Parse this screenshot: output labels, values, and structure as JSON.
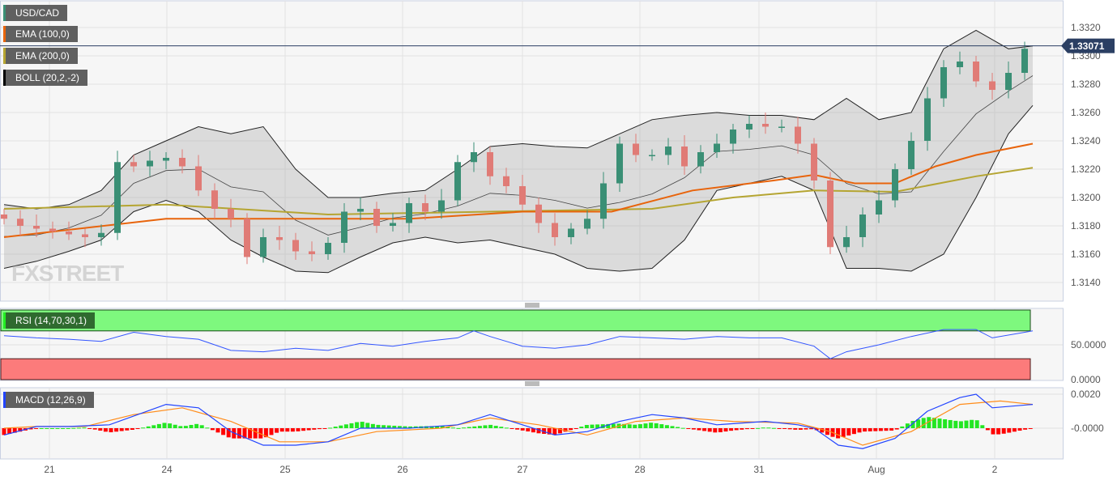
{
  "legend": {
    "symbol": "USD/CAD",
    "ema100": "EMA (100,0)",
    "ema200": "EMA (200,0)",
    "boll": "BOLL (20,2,-2)",
    "rsi": "RSI (14,70,30,1)",
    "macd": "MACD (12,26,9)"
  },
  "watermark": "FXSTREET",
  "colors": {
    "up": "#3a8f75",
    "down": "#e07b76",
    "ema100": "#e8640c",
    "ema200": "#b5a532",
    "boll": "#222222",
    "rsi": "#3355ff",
    "macd": "#2244ff",
    "signal": "#ff8c1a",
    "price_tag": "#2b3f63"
  },
  "chart_data": [
    {
      "type": "candlestick",
      "title": "USD/CAD",
      "ylim": [
        1.3126,
        1.3332
      ],
      "y_ticks": [
        "1.3140",
        "1.3160",
        "1.3180",
        "1.3200",
        "1.3220",
        "1.3240",
        "1.3260",
        "1.3280",
        "1.3300",
        "1.3320"
      ],
      "x_ticks": [
        "21",
        "24",
        "25",
        "26",
        "27",
        "28",
        "31",
        "Aug",
        "2"
      ],
      "last_price": "1.33071",
      "closes": [
        1.3185,
        1.318,
        1.3178,
        1.3176,
        1.3174,
        1.3172,
        1.3175,
        1.3225,
        1.3222,
        1.3226,
        1.3228,
        1.3222,
        1.3205,
        1.3192,
        1.3185,
        1.3158,
        1.3172,
        1.317,
        1.3162,
        1.316,
        1.3168,
        1.319,
        1.3192,
        1.318,
        1.3182,
        1.3196,
        1.319,
        1.3198,
        1.3225,
        1.3232,
        1.3215,
        1.3208,
        1.3195,
        1.3182,
        1.3172,
        1.3178,
        1.3185,
        1.321,
        1.3238,
        1.323,
        1.323,
        1.3236,
        1.3222,
        1.3232,
        1.3238,
        1.3248,
        1.3252,
        1.325,
        1.325,
        1.3238,
        1.3212,
        1.3165,
        1.3172,
        1.3188,
        1.3198,
        1.322,
        1.324,
        1.327,
        1.3292,
        1.3296,
        1.3282,
        1.3276,
        1.3288,
        1.3305
      ],
      "ema100": [
        [
          0,
          1.3172
        ],
        [
          10,
          1.3185
        ],
        [
          15,
          1.3185
        ],
        [
          20,
          1.3185
        ],
        [
          25,
          1.3185
        ],
        [
          32,
          1.319
        ],
        [
          37.5,
          1.319
        ],
        [
          42.5,
          1.3205
        ],
        [
          47.5,
          1.3212
        ],
        [
          50,
          1.3216
        ],
        [
          52.5,
          1.321
        ],
        [
          55,
          1.321
        ],
        [
          57.5,
          1.3222
        ],
        [
          60,
          1.323
        ],
        [
          63.5,
          1.3238
        ]
      ],
      "ema200": [
        [
          0,
          1.3192
        ],
        [
          10,
          1.3195
        ],
        [
          20,
          1.3188
        ],
        [
          30,
          1.319
        ],
        [
          40,
          1.3192
        ],
        [
          45,
          1.32
        ],
        [
          50,
          1.3205
        ],
        [
          55,
          1.3204
        ],
        [
          60,
          1.3215
        ],
        [
          63.5,
          1.3221
        ]
      ],
      "boll_upper": [
        [
          0,
          1.3195
        ],
        [
          2,
          1.3192
        ],
        [
          4,
          1.3195
        ],
        [
          6,
          1.3205
        ],
        [
          8,
          1.323
        ],
        [
          10,
          1.324
        ],
        [
          12,
          1.325
        ],
        [
          14,
          1.3245
        ],
        [
          16,
          1.325
        ],
        [
          18,
          1.322
        ],
        [
          20,
          1.32
        ],
        [
          22,
          1.32
        ],
        [
          24,
          1.3203
        ],
        [
          26,
          1.3205
        ],
        [
          28,
          1.322
        ],
        [
          30,
          1.3236
        ],
        [
          32,
          1.3238
        ],
        [
          34,
          1.3236
        ],
        [
          36,
          1.3235
        ],
        [
          38,
          1.3245
        ],
        [
          40,
          1.3255
        ],
        [
          42,
          1.3258
        ],
        [
          44,
          1.326
        ],
        [
          46,
          1.3258
        ],
        [
          48,
          1.3258
        ],
        [
          50,
          1.3255
        ],
        [
          52,
          1.327
        ],
        [
          54,
          1.3255
        ],
        [
          56,
          1.326
        ],
        [
          58,
          1.3305
        ],
        [
          60,
          1.3318
        ],
        [
          62,
          1.3305
        ],
        [
          63.5,
          1.3307
        ]
      ],
      "boll_lower": [
        [
          0,
          1.315
        ],
        [
          2,
          1.3155
        ],
        [
          4,
          1.3162
        ],
        [
          6,
          1.317
        ],
        [
          8,
          1.319
        ],
        [
          10,
          1.3198
        ],
        [
          12,
          1.319
        ],
        [
          14,
          1.317
        ],
        [
          16,
          1.3158
        ],
        [
          18,
          1.3148
        ],
        [
          20,
          1.3147
        ],
        [
          22,
          1.3158
        ],
        [
          24,
          1.3168
        ],
        [
          26,
          1.3172
        ],
        [
          28,
          1.3168
        ],
        [
          30,
          1.317
        ],
        [
          32,
          1.3165
        ],
        [
          34,
          1.316
        ],
        [
          36,
          1.315
        ],
        [
          38,
          1.3148
        ],
        [
          40,
          1.315
        ],
        [
          42,
          1.317
        ],
        [
          44,
          1.3205
        ],
        [
          46,
          1.321
        ],
        [
          48,
          1.3215
        ],
        [
          50,
          1.3205
        ],
        [
          52,
          1.315
        ],
        [
          54,
          1.315
        ],
        [
          56,
          1.3148
        ],
        [
          58,
          1.316
        ],
        [
          60,
          1.32
        ],
        [
          62,
          1.3245
        ],
        [
          63.5,
          1.3265
        ]
      ]
    },
    {
      "type": "line",
      "title": "RSI (14,70,30,1)",
      "ylim": [
        0,
        100
      ],
      "y_ticks": [
        "50.0000",
        "0.0000"
      ],
      "overbought": 70,
      "oversold": 30,
      "values": [
        [
          0,
          63
        ],
        [
          2,
          60
        ],
        [
          4,
          58
        ],
        [
          6,
          55
        ],
        [
          8,
          68
        ],
        [
          10,
          62
        ],
        [
          12,
          58
        ],
        [
          14,
          42
        ],
        [
          16,
          40
        ],
        [
          18,
          45
        ],
        [
          20,
          42
        ],
        [
          22,
          52
        ],
        [
          24,
          48
        ],
        [
          26,
          55
        ],
        [
          28,
          60
        ],
        [
          29,
          70
        ],
        [
          30,
          62
        ],
        [
          32,
          48
        ],
        [
          34,
          45
        ],
        [
          36,
          50
        ],
        [
          38,
          62
        ],
        [
          40,
          60
        ],
        [
          42,
          58
        ],
        [
          44,
          62
        ],
        [
          46,
          60
        ],
        [
          48,
          60
        ],
        [
          50,
          48
        ],
        [
          51,
          30
        ],
        [
          52,
          40
        ],
        [
          54,
          50
        ],
        [
          56,
          62
        ],
        [
          58,
          72
        ],
        [
          60,
          72
        ],
        [
          61,
          60
        ],
        [
          63.5,
          70
        ]
      ]
    },
    {
      "type": "bar+line",
      "title": "MACD (12,26,9)",
      "ylim": [
        -0.0018,
        0.0024
      ],
      "y_ticks": [
        "0.0020",
        "-0.0000"
      ],
      "macd": [
        [
          0,
          -0.0004
        ],
        [
          2,
          0.0001
        ],
        [
          4,
          0.0001
        ],
        [
          6.5,
          0.0002
        ],
        [
          10,
          0.0014
        ],
        [
          12,
          0.0012
        ],
        [
          14,
          -0.0002
        ],
        [
          16,
          -0.001
        ],
        [
          18,
          -0.001
        ],
        [
          20,
          -0.0008
        ],
        [
          22,
          0.0
        ],
        [
          25,
          0.0
        ],
        [
          28,
          0.0002
        ],
        [
          30,
          0.0008
        ],
        [
          32,
          0.0002
        ],
        [
          34,
          -0.0004
        ],
        [
          36,
          -0.0002
        ],
        [
          38,
          0.0004
        ],
        [
          40,
          0.0008
        ],
        [
          42,
          0.0006
        ],
        [
          44,
          0.0002
        ],
        [
          47,
          0.0004
        ],
        [
          49,
          0.0002
        ],
        [
          50,
          0.0
        ],
        [
          51.5,
          -0.001
        ],
        [
          53,
          -0.0012
        ],
        [
          55,
          -0.0006
        ],
        [
          57,
          0.001
        ],
        [
          59,
          0.0018
        ],
        [
          60,
          0.002
        ],
        [
          61,
          0.0012
        ],
        [
          63.5,
          0.0014
        ]
      ],
      "signal": [
        [
          0,
          0.0
        ],
        [
          2,
          0.0001
        ],
        [
          5,
          0.0001
        ],
        [
          8,
          0.0008
        ],
        [
          11,
          0.0012
        ],
        [
          14,
          0.0004
        ],
        [
          17,
          -0.0008
        ],
        [
          20,
          -0.0008
        ],
        [
          23,
          -0.0002
        ],
        [
          27,
          0.0
        ],
        [
          30,
          0.0006
        ],
        [
          33,
          0.0002
        ],
        [
          36,
          -0.0004
        ],
        [
          39,
          0.0004
        ],
        [
          42,
          0.0006
        ],
        [
          45,
          0.0004
        ],
        [
          49,
          0.0003
        ],
        [
          51,
          -0.0002
        ],
        [
          53,
          -0.001
        ],
        [
          56,
          -0.0002
        ],
        [
          59,
          0.0014
        ],
        [
          61.5,
          0.0016
        ],
        [
          63.5,
          0.0014
        ]
      ]
    }
  ]
}
